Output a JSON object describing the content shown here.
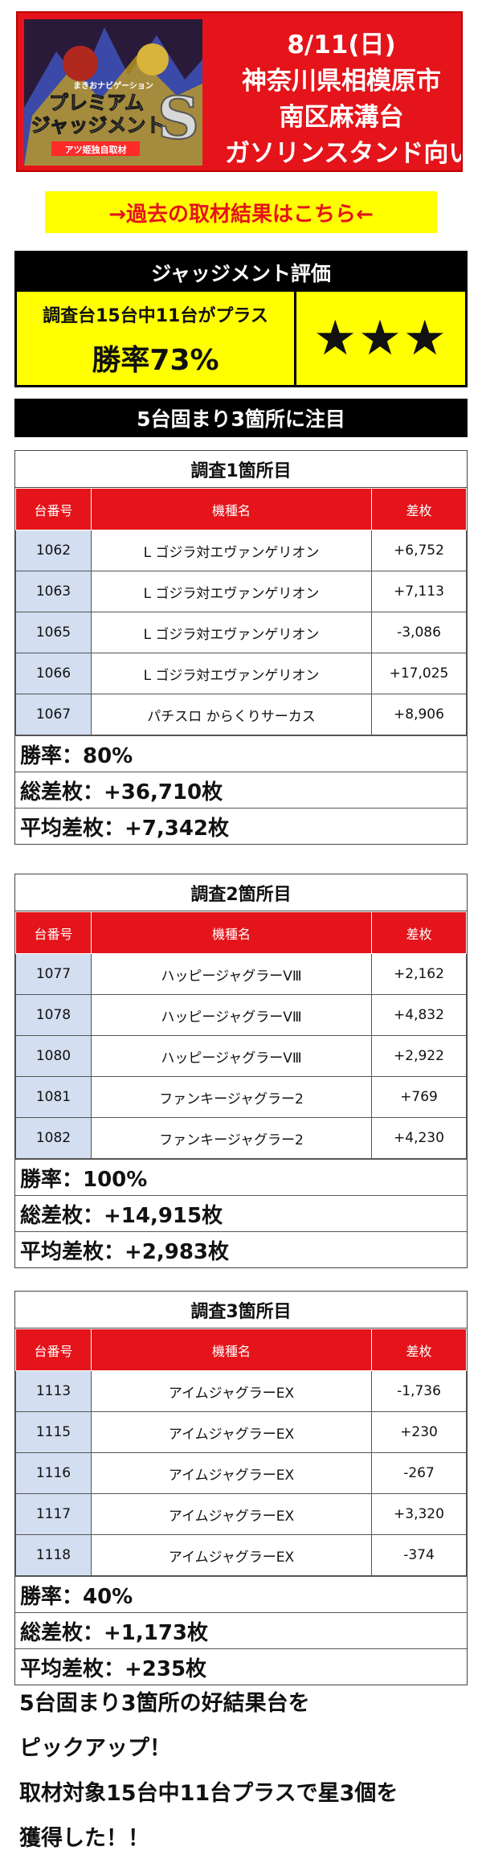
{
  "header": {
    "logo": {
      "tagline": "まきおナビゲーション",
      "title_line1": "プレミアム",
      "title_line2": "ジャッジメント",
      "mark": "S",
      "badge": "アツ姫独自取材"
    },
    "date": "8/11(日)",
    "prefecture_city": "神奈川県相模原市",
    "district": "南区麻溝台",
    "store": "ガソリンスタンド向い"
  },
  "past_results_link": "→過去の取材結果はこちら←",
  "evaluation": {
    "heading": "ジャッジメント評価",
    "condition": "調査台15台中11台がプラス",
    "win_rate": "勝率73%",
    "stars": "★★★"
  },
  "focus_heading": "5台固まり3箇所に注目",
  "columns": {
    "machine_no": "台番号",
    "model": "機種名",
    "diff": "差枚"
  },
  "sections": [
    {
      "title": "調査1箇所目",
      "rows": [
        {
          "no": "1062",
          "model": "L ゴジラ対エヴァンゲリオン",
          "diff": "+6,752"
        },
        {
          "no": "1063",
          "model": "L ゴジラ対エヴァンゲリオン",
          "diff": "+7,113"
        },
        {
          "no": "1065",
          "model": "L ゴジラ対エヴァンゲリオン",
          "diff": "-3,086"
        },
        {
          "no": "1066",
          "model": "L ゴジラ対エヴァンゲリオン",
          "diff": "+17,025"
        },
        {
          "no": "1067",
          "model": "パチスロ からくりサーカス",
          "diff": "+8,906"
        }
      ],
      "win_rate": "勝率：80%",
      "total": "総差枚：+36,710枚",
      "average": "平均差枚：+7,342枚"
    },
    {
      "title": "調査2箇所目",
      "rows": [
        {
          "no": "1077",
          "model": "ハッピージャグラーVⅢ",
          "diff": "+2,162"
        },
        {
          "no": "1078",
          "model": "ハッピージャグラーVⅢ",
          "diff": "+4,832"
        },
        {
          "no": "1080",
          "model": "ハッピージャグラーVⅢ",
          "diff": "+2,922"
        },
        {
          "no": "1081",
          "model": "ファンキージャグラー2",
          "diff": "+769"
        },
        {
          "no": "1082",
          "model": "ファンキージャグラー2",
          "diff": "+4,230"
        }
      ],
      "win_rate": "勝率：100%",
      "total": "総差枚：+14,915枚",
      "average": "平均差枚：+2,983枚"
    },
    {
      "title": "調査3箇所目",
      "rows": [
        {
          "no": "1113",
          "model": "アイムジャグラーEX",
          "diff": "-1,736"
        },
        {
          "no": "1115",
          "model": "アイムジャグラーEX",
          "diff": "+230"
        },
        {
          "no": "1116",
          "model": "アイムジャグラーEX",
          "diff": "-267"
        },
        {
          "no": "1117",
          "model": "アイムジャグラーEX",
          "diff": "+3,320"
        },
        {
          "no": "1118",
          "model": "アイムジャグラーEX",
          "diff": "-374"
        }
      ],
      "win_rate": "勝率：40%",
      "total": "総差枚：+1,173枚",
      "average": "平均差枚：+235枚"
    }
  ],
  "closing": [
    "5台固まり3箇所の好結果台を",
    "ピックアップ！",
    "取材対象15台中11台プラスで星3個を",
    "獲得した！！"
  ],
  "colors": {
    "accent_red": "#e4141a",
    "highlight_yellow": "#ffff00",
    "row_blue": "#d3def0",
    "black": "#000000"
  }
}
